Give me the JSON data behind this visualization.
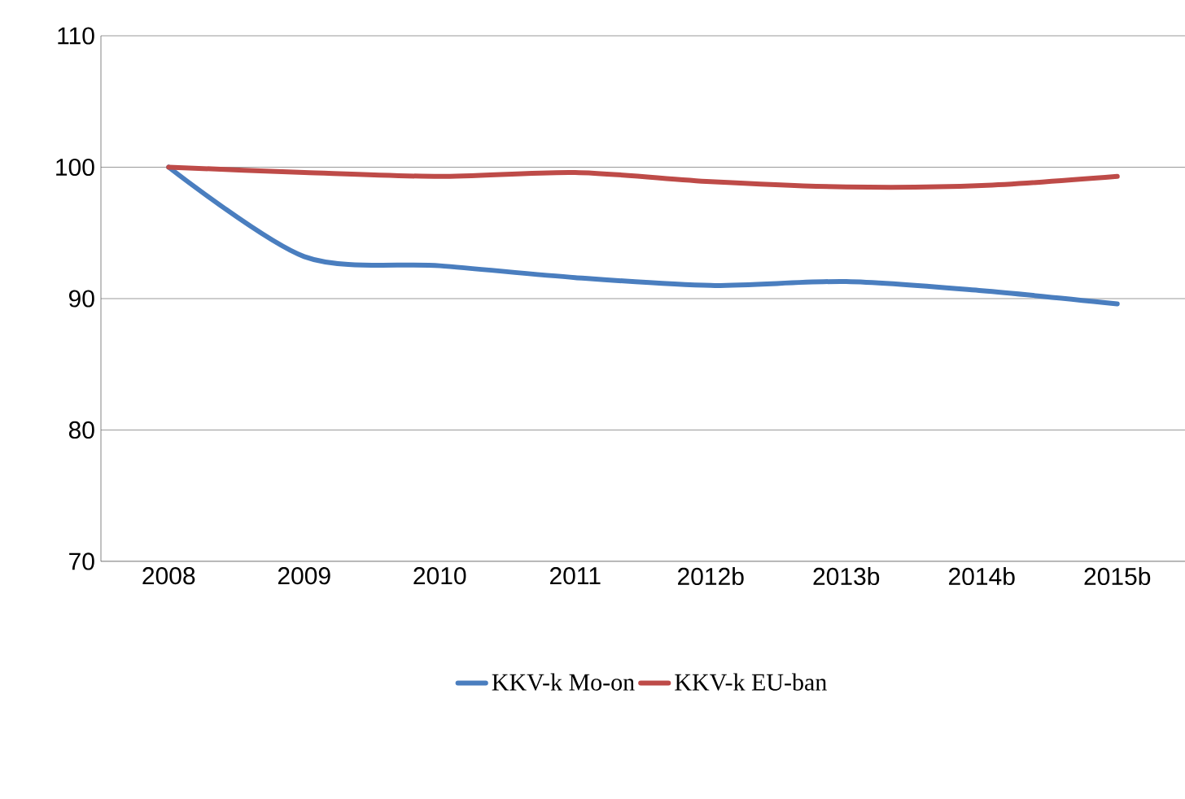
{
  "chart_data": {
    "type": "line",
    "categories": [
      "2008",
      "2009",
      "2010",
      "2011",
      "2012b",
      "2013b",
      "2014b",
      "2015b"
    ],
    "series": [
      {
        "name": "KKV-k Mo-on",
        "color": "#4a7ebf",
        "values": [
          100,
          93.2,
          92.5,
          91.6,
          91.0,
          91.3,
          90.6,
          89.6
        ]
      },
      {
        "name": "KKV-k EU-ban",
        "color": "#be4b48",
        "values": [
          100,
          99.6,
          99.3,
          99.6,
          98.9,
          98.5,
          98.6,
          99.3
        ]
      }
    ],
    "ylim": [
      70,
      110
    ],
    "yticks": [
      70,
      80,
      90,
      100,
      110
    ],
    "grid": "y",
    "legend": "bottom",
    "marker": "none",
    "line_style": "solid"
  }
}
